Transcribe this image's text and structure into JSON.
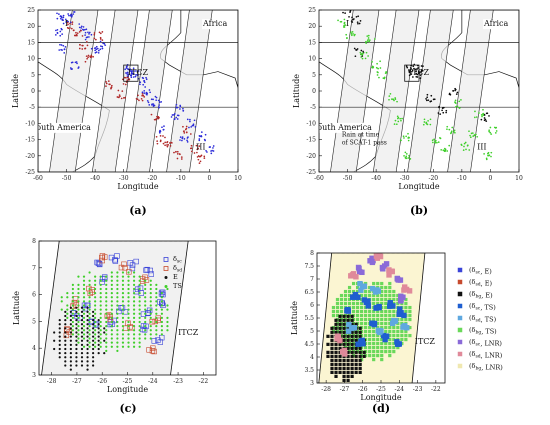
{
  "chart_data": [
    {
      "panel": "(a)",
      "type": "scatter",
      "xlabel": "Longitude",
      "ylabel": "Latitude",
      "xlim": [
        -60,
        10
      ],
      "ylim": [
        -25,
        25
      ],
      "xticks": [
        -60,
        -50,
        -40,
        -30,
        -20,
        -10,
        0,
        10
      ],
      "yticks": [
        -25,
        -20,
        -15,
        -10,
        -5,
        0,
        5,
        10,
        15,
        20,
        25
      ],
      "hlines": [
        15,
        -5
      ],
      "regions": [
        {
          "label": "Africa",
          "x": 2,
          "y": 20
        },
        {
          "label": "I",
          "x": -50,
          "y": 20
        },
        {
          "label": "ITCZ",
          "x": -25,
          "y": 5
        },
        {
          "label": "South America",
          "x": -52,
          "y": -12
        },
        {
          "label": "III",
          "x": -3,
          "y": -18
        }
      ],
      "box": {
        "x": [
          -30,
          -25
        ],
        "y": [
          3,
          8
        ]
      },
      "series": [
        {
          "color": "#2a2ad8",
          "points": [
            [
              -52,
              23
            ],
            [
              -50,
              22
            ],
            [
              -48,
              24
            ],
            [
              -53,
              18
            ],
            [
              -51,
              13
            ],
            [
              -47,
              8
            ],
            [
              -44,
              20
            ],
            [
              -42,
              17
            ],
            [
              -40,
              12
            ],
            [
              -38,
              14
            ],
            [
              -28,
              7
            ],
            [
              -27,
              6
            ],
            [
              -26,
              5
            ],
            [
              -28,
              5
            ],
            [
              -23,
              3
            ],
            [
              -22,
              0
            ],
            [
              -20,
              -3
            ],
            [
              -18,
              -4
            ],
            [
              -16,
              -12
            ],
            [
              -12,
              -8
            ],
            [
              -10,
              -5
            ],
            [
              -9,
              -15
            ],
            [
              -6,
              -10
            ],
            [
              -2,
              -14
            ],
            [
              0,
              -18
            ]
          ]
        },
        {
          "color": "#b02828",
          "points": [
            [
              -49,
              20
            ],
            [
              -46,
              18
            ],
            [
              -44,
              14
            ],
            [
              -42,
              10
            ],
            [
              -39,
              17
            ],
            [
              -35,
              2
            ],
            [
              -31,
              -1
            ],
            [
              -29,
              3
            ],
            [
              -24,
              -2
            ],
            [
              -19,
              -8
            ],
            [
              -17,
              -15
            ],
            [
              -14,
              -16
            ],
            [
              -11,
              -20
            ],
            [
              -8,
              -12
            ],
            [
              -5,
              -18
            ],
            [
              -3,
              -21
            ]
          ]
        }
      ]
    },
    {
      "panel": "(b)",
      "type": "scatter",
      "xlabel": "Longitude",
      "ylabel": "Latitude",
      "xlim": [
        -60,
        10
      ],
      "ylim": [
        -25,
        25
      ],
      "xticks": [
        -60,
        -50,
        -40,
        -30,
        -20,
        -10,
        0,
        10
      ],
      "yticks": [
        -25,
        -20,
        -15,
        -10,
        -5,
        0,
        5,
        10,
        15,
        20,
        25
      ],
      "hlines": [
        15,
        -5
      ],
      "regions": [
        {
          "label": "Africa",
          "x": 2,
          "y": 20
        },
        {
          "label": "I",
          "x": -50,
          "y": 20
        },
        {
          "label": "ITCZ",
          "x": -25,
          "y": 5
        },
        {
          "label": "South America",
          "x": -52,
          "y": -12
        },
        {
          "label": "III",
          "x": -3,
          "y": -18
        }
      ],
      "annotation": [
        "Rain at time",
        "of SCAT-1 pass"
      ],
      "box": {
        "x": [
          -30,
          -25
        ],
        "y": [
          3,
          8
        ]
      },
      "series": [
        {
          "color": "#0a0a0a",
          "points": [
            [
              -50,
              24
            ],
            [
              -47,
              22
            ],
            [
              -46,
              12
            ],
            [
              -28,
              7
            ],
            [
              -27,
              6
            ],
            [
              -26,
              5
            ],
            [
              -25,
              7
            ],
            [
              -21,
              -2
            ],
            [
              -17,
              -6
            ],
            [
              -13,
              0
            ],
            [
              -2,
              -8
            ]
          ]
        },
        {
          "color": "#3fcf2a",
          "points": [
            [
              -52,
              21
            ],
            [
              -49,
              17
            ],
            [
              -44,
              11
            ],
            [
              -42,
              16
            ],
            [
              -40,
              8
            ],
            [
              -38,
              5
            ],
            [
              -34,
              -2
            ],
            [
              -32,
              -9
            ],
            [
              -30,
              -14
            ],
            [
              -29,
              -20
            ],
            [
              -22,
              -10
            ],
            [
              -19,
              -15
            ],
            [
              -16,
              -18
            ],
            [
              -14,
              -12
            ],
            [
              -11,
              -4
            ],
            [
              -9,
              -17
            ],
            [
              -6,
              -13
            ],
            [
              -4,
              -7
            ],
            [
              -1,
              -20
            ],
            [
              1,
              -12
            ]
          ]
        }
      ]
    },
    {
      "panel": "(c)",
      "type": "scatter",
      "xlabel": "Longitude",
      "ylabel": "Latitude",
      "xlim": [
        -28.5,
        -21.5
      ],
      "ylim": [
        3,
        8
      ],
      "xticks": [
        -28,
        -27,
        -26,
        -25,
        -24,
        -23,
        -22
      ],
      "yticks": [
        3,
        4,
        5,
        6,
        7,
        8
      ],
      "regions": [
        {
          "label": "ITCZ",
          "x": -22.6,
          "y": 4.5
        }
      ],
      "legend": [
        {
          "label": "δsc",
          "color": "#3a44d8",
          "marker": "square"
        },
        {
          "label": "δsd",
          "color": "#c74b2e",
          "marker": "square"
        },
        {
          "label": "E",
          "color": "#111111",
          "marker": "dot"
        },
        {
          "label": "TS",
          "color": "#3fcf2a",
          "marker": "dot"
        }
      ],
      "series": [
        {
          "name": "δsc",
          "color": "#3a44d8",
          "marker": "square",
          "points": [
            [
              -26.2,
              7.2
            ],
            [
              -25.5,
              7.3
            ],
            [
              -24.8,
              7.1
            ],
            [
              -24.1,
              6.9
            ],
            [
              -25.9,
              6.6
            ],
            [
              -24.6,
              6.2
            ],
            [
              -23.6,
              6.0
            ],
            [
              -26.7,
              5.6
            ],
            [
              -25.2,
              5.5
            ],
            [
              -24.2,
              5.3
            ],
            [
              -26.4,
              5.0
            ],
            [
              -25.6,
              4.9
            ],
            [
              -24.4,
              4.7
            ],
            [
              -27.0,
              5.2
            ],
            [
              -23.6,
              5.6
            ],
            [
              -23.8,
              4.3
            ]
          ]
        },
        {
          "name": "δsd",
          "color": "#c74b2e",
          "marker": "square",
          "points": [
            [
              -25.9,
              7.4
            ],
            [
              -25.1,
              7.0
            ],
            [
              -24.4,
              6.5
            ],
            [
              -26.4,
              6.1
            ],
            [
              -27.1,
              5.7
            ],
            [
              -25.8,
              5.2
            ],
            [
              -24.9,
              4.8
            ],
            [
              -27.3,
              4.6
            ],
            [
              -24.0,
              4.0
            ],
            [
              -23.9,
              5.0
            ]
          ]
        },
        {
          "name": "E",
          "color": "#111111",
          "marker": "dot",
          "region": {
            "x": [
              -27.9,
              -25.9
            ],
            "y": [
              3.2,
              5.6
            ]
          }
        },
        {
          "name": "TS",
          "color": "#3fcf2a",
          "marker": "dot",
          "region": {
            "x": [
              -27.6,
              -23.3
            ],
            "y": [
              3.9,
              6.9
            ]
          }
        }
      ]
    },
    {
      "panel": "(d)",
      "type": "scatter",
      "xlabel": "Longitude",
      "ylabel": "Latitude",
      "xlim": [
        -28.5,
        -21.5
      ],
      "ylim": [
        3,
        8
      ],
      "xticks": [
        -28,
        -27,
        -26,
        -25,
        -24,
        -23,
        -22
      ],
      "yticks": [
        3,
        3.5,
        4,
        4.5,
        5,
        5.5,
        6,
        6.5,
        7,
        7.5,
        8
      ],
      "regions": [
        {
          "label": "ITCZ",
          "x": -22.6,
          "y": 4.5
        }
      ],
      "legend": [
        {
          "label": "(δsc, E)",
          "color": "#3a44d8",
          "marker": "square"
        },
        {
          "label": "(δsd, E)",
          "color": "#c74b2e",
          "marker": "square"
        },
        {
          "label": "(δbg, E)",
          "color": "#111111",
          "marker": "square"
        },
        {
          "label": "(δsc, TS)",
          "color": "#1f5fd0",
          "marker": "square"
        },
        {
          "label": "(δsd, TS)",
          "color": "#5fa8e0",
          "marker": "square"
        },
        {
          "label": "(δbg, TS)",
          "color": "#6ad85a",
          "marker": "square"
        },
        {
          "label": "(δsc, LNR)",
          "color": "#8a6ad8",
          "marker": "square"
        },
        {
          "label": "(δsd, LNR)",
          "color": "#e08a9a",
          "marker": "square"
        },
        {
          "label": "(δbg, LNR)",
          "color": "#f0e8b0",
          "marker": "square"
        }
      ],
      "series": [
        {
          "name": "(δbg, LNR)",
          "color": "#fbf5d2",
          "marker": "fill",
          "region": {
            "x": [
              -28.2,
              -22.5
            ],
            "y": [
              3.0,
              8.0
            ]
          }
        },
        {
          "name": "(δbg, TS)",
          "color": "#6ad85a",
          "marker": "square",
          "region": {
            "x": [
              -27.6,
              -23.4
            ],
            "y": [
              3.9,
              6.9
            ]
          }
        },
        {
          "name": "(δbg, E)",
          "color": "#111111",
          "marker": "square",
          "region": {
            "x": [
              -27.9,
              -25.9
            ],
            "y": [
              3.1,
              5.6
            ]
          }
        },
        {
          "name": "(δsc, TS)",
          "color": "#1f5fd0",
          "marker": "square",
          "points": [
            [
              -26.4,
              6.4
            ],
            [
              -25.8,
              6.1
            ],
            [
              -25.1,
              5.9
            ],
            [
              -24.5,
              6.0
            ],
            [
              -23.9,
              5.7
            ],
            [
              -26.8,
              5.8
            ],
            [
              -25.5,
              5.3
            ],
            [
              -24.7,
              4.8
            ],
            [
              -26.1,
              4.6
            ],
            [
              -24.0,
              4.5
            ]
          ]
        },
        {
          "name": "(δsd, TS)",
          "color": "#5fa8e0",
          "marker": "square",
          "points": [
            [
              -26.0,
              6.7
            ],
            [
              -25.3,
              6.5
            ],
            [
              -24.3,
              5.4
            ],
            [
              -26.6,
              5.1
            ],
            [
              -25.0,
              5.0
            ],
            [
              -23.7,
              5.2
            ]
          ]
        },
        {
          "name": "(δsc, LNR)",
          "color": "#8a6ad8",
          "marker": "square",
          "points": [
            [
              -25.6,
              7.7
            ],
            [
              -24.8,
              7.5
            ],
            [
              -26.2,
              7.4
            ],
            [
              -24.1,
              7.0
            ],
            [
              -23.8,
              6.3
            ]
          ]
        },
        {
          "name": "(δsd, LNR)",
          "color": "#e08a9a",
          "marker": "square",
          "points": [
            [
              -25.2,
              7.8
            ],
            [
              -26.5,
              7.2
            ],
            [
              -24.4,
              7.3
            ],
            [
              -23.6,
              6.6
            ],
            [
              -27.4,
              4.7
            ],
            [
              -27.1,
              4.2
            ]
          ]
        }
      ]
    }
  ]
}
